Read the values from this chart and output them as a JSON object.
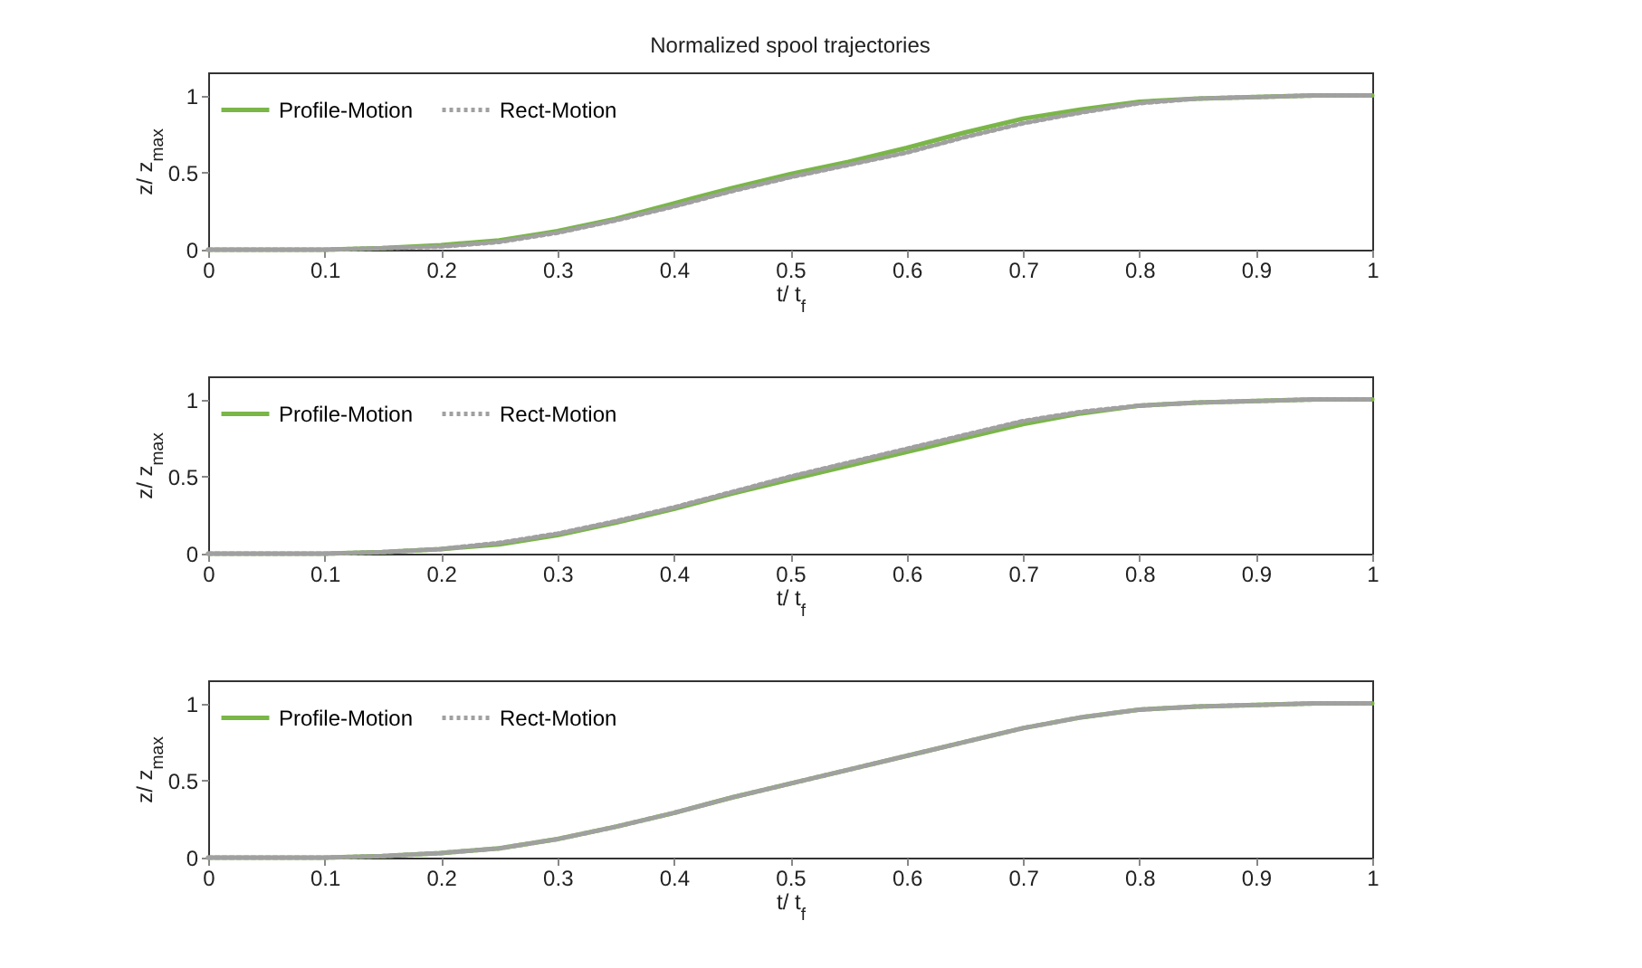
{
  "chart_data": [
    {
      "type": "line",
      "title": "Normalized spool trajectories",
      "xlabel": "t/ t$_{f}$",
      "ylabel": "z/ z$_{max}$",
      "xlim": [
        0,
        1
      ],
      "xticks": [
        0,
        0.1,
        0.2,
        0.3,
        0.4,
        0.5,
        0.6,
        0.7,
        0.8,
        0.9,
        1
      ],
      "ylim": [
        0,
        1.15
      ],
      "yticks": [
        0,
        0.5,
        1
      ],
      "grid": false,
      "legend": "top left",
      "line_style": "solid",
      "x": [
        0,
        0.05,
        0.1,
        0.15,
        0.2,
        0.25,
        0.3,
        0.35,
        0.4,
        0.45,
        0.5,
        0.55,
        0.6,
        0.65,
        0.7,
        0.75,
        0.8,
        0.85,
        0.9,
        0.95,
        1
      ],
      "series": [
        {
          "name": "Profile-Motion",
          "color": "#7ab648",
          "values": [
            0,
            0,
            0,
            0.01,
            0.03,
            0.06,
            0.12,
            0.2,
            0.3,
            0.4,
            0.49,
            0.57,
            0.66,
            0.76,
            0.85,
            0.91,
            0.96,
            0.98,
            0.99,
            1,
            1
          ]
        },
        {
          "name": "Rect-Motion",
          "color": "#a0a0a0",
          "line_style": "dotted",
          "values": [
            0,
            0,
            0,
            0.01,
            0.02,
            0.05,
            0.11,
            0.19,
            0.28,
            0.38,
            0.47,
            0.55,
            0.63,
            0.73,
            0.82,
            0.89,
            0.95,
            0.98,
            0.99,
            1,
            1
          ]
        }
      ]
    },
    {
      "type": "line",
      "xlabel": "t/ t$_{f}$",
      "ylabel": "z/ z$_{max}$",
      "xlim": [
        0,
        1
      ],
      "xticks": [
        0,
        0.1,
        0.2,
        0.3,
        0.4,
        0.5,
        0.6,
        0.7,
        0.8,
        0.9,
        1
      ],
      "ylim": [
        0,
        1.15
      ],
      "yticks": [
        0,
        0.5,
        1
      ],
      "grid": false,
      "legend": "top left",
      "line_style": "solid",
      "x": [
        0,
        0.05,
        0.1,
        0.15,
        0.2,
        0.25,
        0.3,
        0.35,
        0.4,
        0.45,
        0.5,
        0.55,
        0.6,
        0.65,
        0.7,
        0.75,
        0.8,
        0.85,
        0.9,
        0.95,
        1
      ],
      "series": [
        {
          "name": "Profile-Motion",
          "color": "#7ab648",
          "values": [
            0,
            0,
            0,
            0.01,
            0.03,
            0.06,
            0.12,
            0.2,
            0.29,
            0.39,
            0.48,
            0.57,
            0.66,
            0.75,
            0.84,
            0.91,
            0.96,
            0.98,
            0.99,
            1,
            1
          ]
        },
        {
          "name": "Rect-Motion",
          "color": "#a0a0a0",
          "line_style": "dotted",
          "values": [
            0,
            0,
            0,
            0.01,
            0.03,
            0.07,
            0.13,
            0.21,
            0.3,
            0.4,
            0.5,
            0.59,
            0.68,
            0.77,
            0.86,
            0.92,
            0.96,
            0.98,
            0.99,
            1,
            1
          ]
        }
      ]
    },
    {
      "type": "line",
      "xlabel": "t/ t$_{f}$",
      "ylabel": "z/ z$_{max}$",
      "xlim": [
        0,
        1
      ],
      "xticks": [
        0,
        0.1,
        0.2,
        0.3,
        0.4,
        0.5,
        0.6,
        0.7,
        0.8,
        0.9,
        1
      ],
      "ylim": [
        0,
        1.15
      ],
      "yticks": [
        0,
        0.5,
        1
      ],
      "grid": false,
      "legend": "top left",
      "line_style": "solid",
      "x": [
        0,
        0.05,
        0.1,
        0.15,
        0.2,
        0.25,
        0.3,
        0.35,
        0.4,
        0.45,
        0.5,
        0.55,
        0.6,
        0.65,
        0.7,
        0.75,
        0.8,
        0.85,
        0.9,
        0.95,
        1
      ],
      "series": [
        {
          "name": "Profile-Motion",
          "color": "#7ab648",
          "values": [
            0,
            0,
            0,
            0.01,
            0.03,
            0.06,
            0.12,
            0.2,
            0.29,
            0.39,
            0.48,
            0.57,
            0.66,
            0.75,
            0.84,
            0.91,
            0.96,
            0.98,
            0.99,
            1,
            1
          ]
        },
        {
          "name": "Rect-Motion",
          "color": "#a0a0a0",
          "line_style": "dotted",
          "values": [
            0,
            0,
            0,
            0.01,
            0.03,
            0.06,
            0.12,
            0.2,
            0.29,
            0.39,
            0.48,
            0.57,
            0.66,
            0.75,
            0.84,
            0.91,
            0.96,
            0.98,
            0.99,
            1,
            1
          ]
        }
      ]
    }
  ]
}
